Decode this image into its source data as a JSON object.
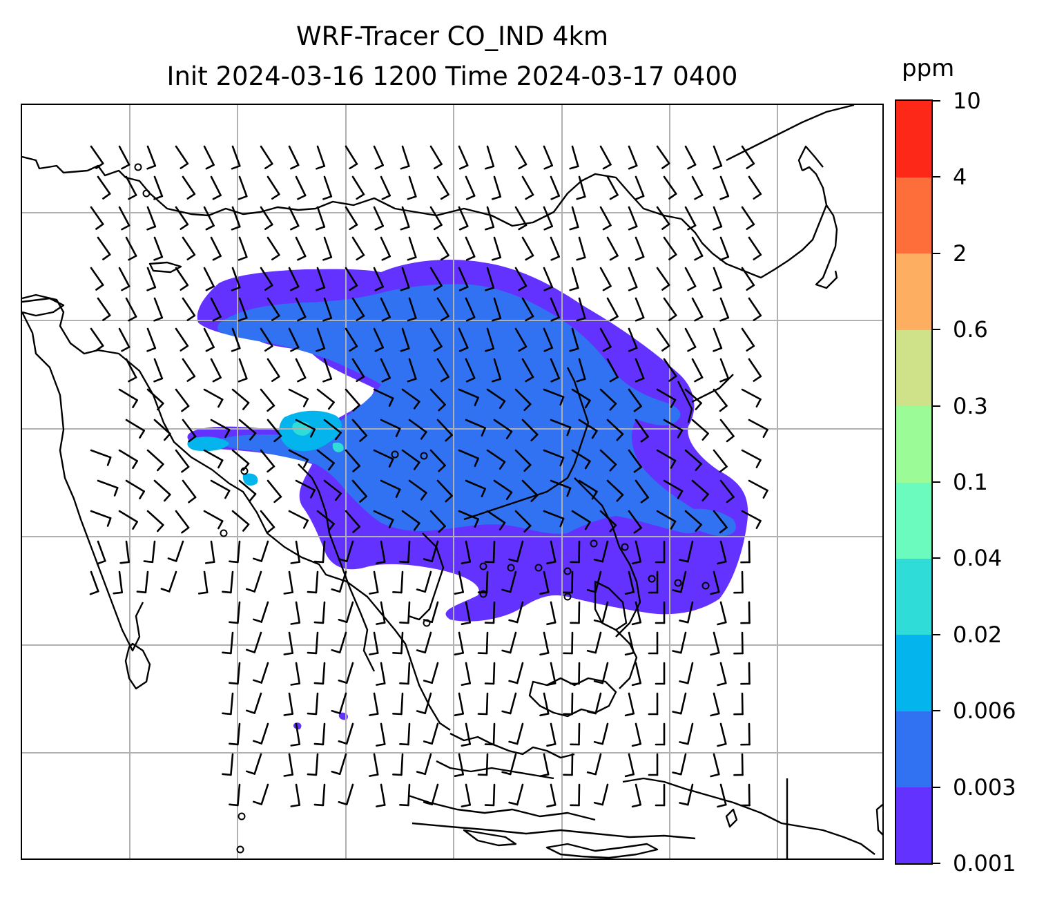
{
  "figure": {
    "title_line_1": "WRF-Tracer CO_IND 4km",
    "title_line_2": "Init 2024-03-16 1200 Time 2024-03-17 0400"
  },
  "colorbar": {
    "unit": "ppm",
    "tick_labels": [
      "0.001",
      "0.003",
      "0.006",
      "0.02",
      "0.04",
      "0.1",
      "0.3",
      "0.6",
      "2",
      "4",
      "10"
    ],
    "levels": [
      0.001,
      0.003,
      0.006,
      0.02,
      0.04,
      0.1,
      0.3,
      0.6,
      2,
      4,
      10
    ],
    "colors": [
      "#6432fe",
      "#3072f2",
      "#04b4ec",
      "#30dcd7",
      "#6bfbbf",
      "#9afb97",
      "#cfe189",
      "#fdae61",
      "#fe6e3b",
      "#fe2818"
    ]
  },
  "map": {
    "projection": "lat-lon with gridlines",
    "gridlines": "light grey",
    "wind_barbs": "black",
    "coastline_color": "#000000"
  }
}
